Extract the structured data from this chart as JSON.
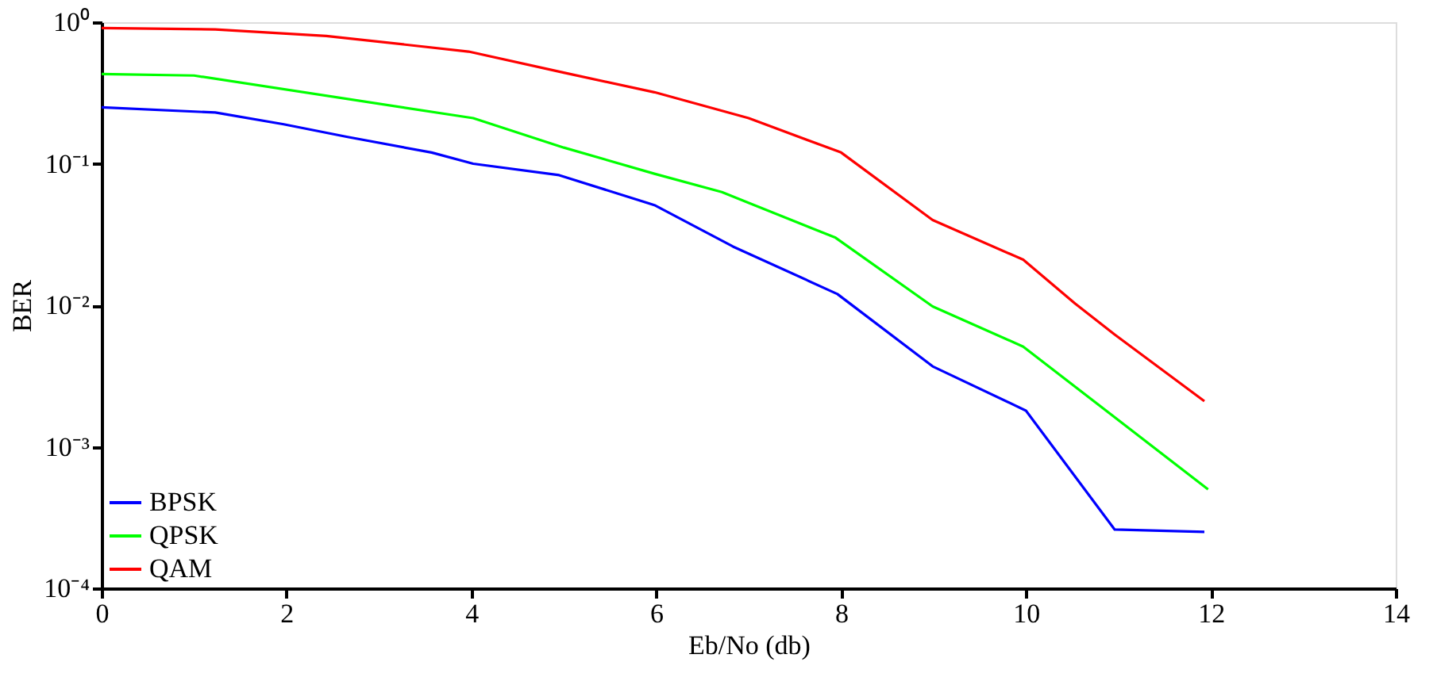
{
  "chart_data": {
    "type": "line",
    "xlabel": "Eb/No (db)",
    "ylabel": "BER",
    "log": "y",
    "grid": false,
    "legend": "bottom left",
    "marker": "none",
    "line_style": "solid",
    "xlim": [
      0,
      14
    ],
    "xticks": [
      0,
      2,
      4,
      6,
      8,
      10,
      12,
      14
    ],
    "ylim": [
      0.0001,
      1
    ],
    "yticks": [
      {
        "value": 0.0001,
        "label": "10⁻⁴"
      },
      {
        "value": 0.001,
        "label": "10⁻³"
      },
      {
        "value": 0.01,
        "label": "10⁻²"
      },
      {
        "value": 0.1,
        "label": "10⁻¹"
      },
      {
        "value": 1,
        "label": "10⁰"
      }
    ],
    "series": [
      {
        "name": "BPSK",
        "color": "#0000ff",
        "x": [
          0,
          1.23,
          1.97,
          2.65,
          3.57,
          4.02,
          4.95,
          5.98,
          6.83,
          7.96,
          8.99,
          10.0,
          10.96,
          11.93
        ],
        "values": [
          0.25,
          0.23,
          0.19,
          0.155,
          0.12,
          0.1,
          0.083,
          0.051,
          0.026,
          0.012,
          0.0037,
          0.0018,
          0.00026,
          0.00025
        ]
      },
      {
        "name": "QPSK",
        "color": "#00ff00",
        "x": [
          0,
          1.0,
          4.02,
          5.0,
          5.98,
          6.71,
          7.94,
          8.99,
          9.97,
          11.97
        ],
        "values": [
          0.43,
          0.42,
          0.21,
          0.13,
          0.085,
          0.063,
          0.03,
          0.0098,
          0.0051,
          0.0005
        ]
      },
      {
        "name": "QAM",
        "color": "#ff0000",
        "x": [
          0,
          1.23,
          2.43,
          3.97,
          5.0,
          5.98,
          7.0,
          8.0,
          8.99,
          9.97,
          10.53,
          10.96,
          11.93
        ],
        "values": [
          0.91,
          0.89,
          0.8,
          0.62,
          0.44,
          0.32,
          0.21,
          0.12,
          0.04,
          0.021,
          0.0103,
          0.0062,
          0.0021
        ]
      }
    ]
  }
}
